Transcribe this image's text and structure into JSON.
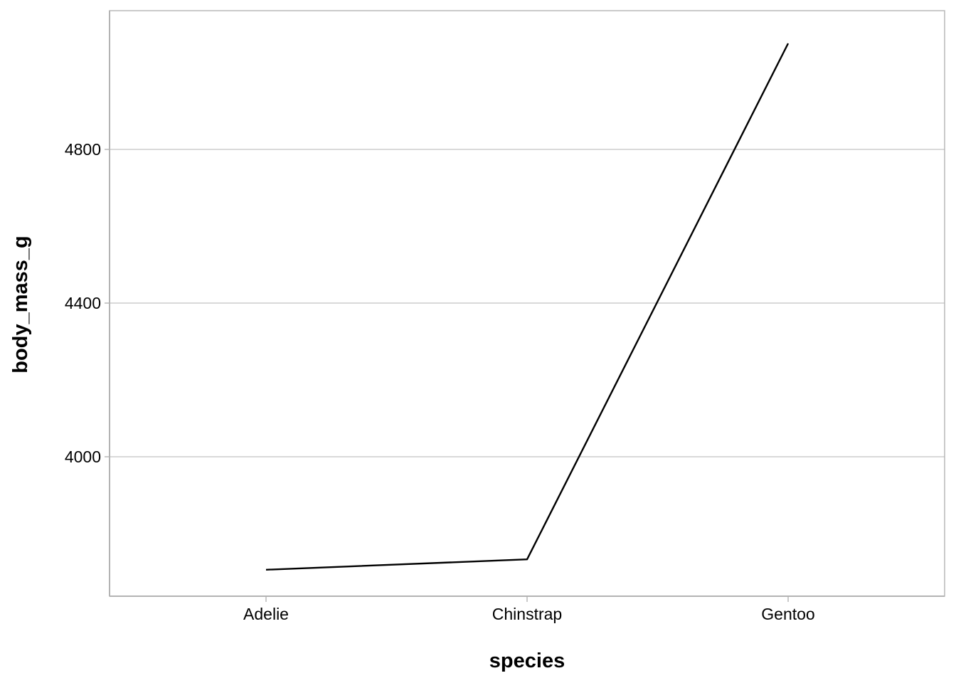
{
  "chart_data": {
    "type": "line",
    "title": "",
    "xlabel": "species",
    "ylabel": "body_mass_g",
    "categories": [
      "Adelie",
      "Chinstrap",
      "Gentoo"
    ],
    "series": [
      {
        "values": [
          3706,
          3733,
          5076
        ],
        "color": "#000000"
      }
    ],
    "ylim": [
      3640,
      5160
    ],
    "yticks": [
      4000,
      4400,
      4800
    ],
    "ytick_labels": [
      "4000",
      "4400",
      "4800"
    ],
    "grid": {
      "horizontal_major": true,
      "vertical": false
    },
    "legend": "none"
  }
}
